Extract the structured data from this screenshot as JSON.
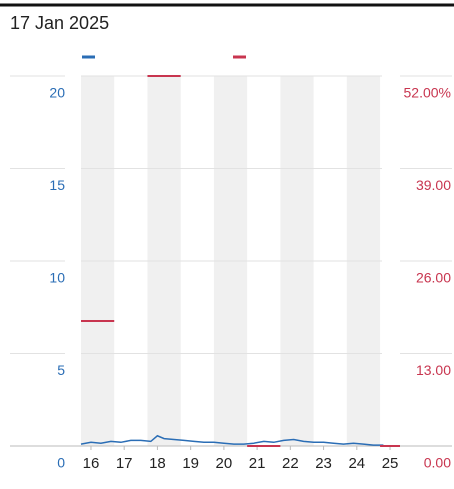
{
  "chart_data": {
    "type": "line",
    "title": "17 Jan 2025",
    "xlim": [
      15.7,
      25.3
    ],
    "xticks": [
      16,
      17,
      18,
      19,
      20,
      21,
      22,
      23,
      24,
      25
    ],
    "ylim": [
      0,
      20
    ],
    "yticks": [
      0,
      5,
      10,
      15,
      20
    ],
    "y2lim": [
      0,
      52
    ],
    "y2ticks": [
      {
        "value": 0,
        "label": "0.00"
      },
      {
        "value": 13,
        "label": "13.00"
      },
      {
        "value": 26,
        "label": "26.00"
      },
      {
        "value": 39,
        "label": "39.00"
      },
      {
        "value": 52,
        "label": "52.00%"
      }
    ],
    "grid": true,
    "series": [
      {
        "color": "#2a6db5",
        "x": [
          15.7,
          16.0,
          16.3,
          16.6,
          16.9,
          17.2,
          17.5,
          17.8,
          18.0,
          18.2,
          18.5,
          18.8,
          19.1,
          19.4,
          19.7,
          20.0,
          20.3,
          20.6,
          20.9,
          21.2,
          21.5,
          21.8,
          22.1,
          22.4,
          22.7,
          23.0,
          23.3,
          23.6,
          23.9,
          24.2,
          24.5,
          24.8
        ],
        "values": [
          0.1,
          0.2,
          0.15,
          0.25,
          0.2,
          0.3,
          0.3,
          0.25,
          0.55,
          0.4,
          0.35,
          0.3,
          0.25,
          0.2,
          0.2,
          0.15,
          0.1,
          0.1,
          0.15,
          0.25,
          0.2,
          0.3,
          0.35,
          0.25,
          0.2,
          0.2,
          0.15,
          0.1,
          0.15,
          0.1,
          0.05,
          0.05
        ]
      },
      {
        "color": "#c8354f",
        "axis": "y2",
        "x": [
          15.7,
          17.7,
          20.7,
          24.7
        ],
        "values": [
          17.57,
          52,
          0,
          0
        ]
      }
    ]
  }
}
